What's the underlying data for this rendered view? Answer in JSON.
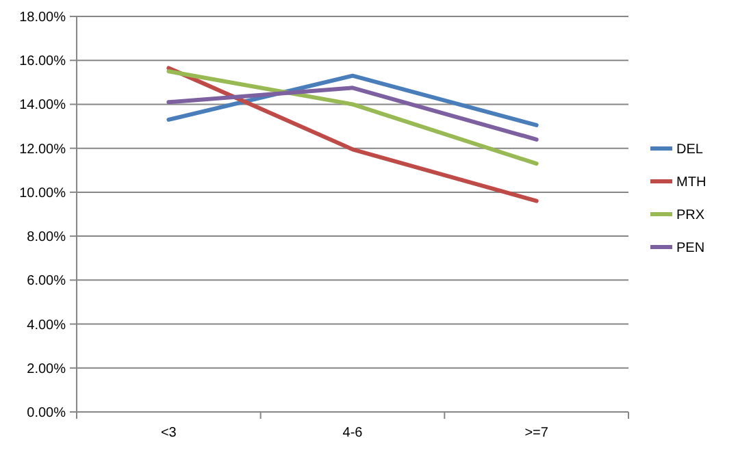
{
  "chart_data": {
    "type": "line",
    "categories": [
      "<3",
      "4-6",
      ">=7"
    ],
    "series": [
      {
        "name": "DEL",
        "color": "#4a7ebb",
        "values": [
          13.3,
          15.3,
          13.05
        ]
      },
      {
        "name": "MTH",
        "color": "#be4b48",
        "values": [
          15.65,
          11.95,
          9.6
        ]
      },
      {
        "name": "PRX",
        "color": "#98b954",
        "values": [
          15.5,
          14.0,
          11.3
        ]
      },
      {
        "name": "PEN",
        "color": "#7d60a0",
        "values": [
          14.1,
          14.75,
          12.4
        ]
      }
    ],
    "ylim": [
      0,
      18
    ],
    "yticks": [
      {
        "value": 0,
        "label": "0.00%"
      },
      {
        "value": 2,
        "label": "2.00%"
      },
      {
        "value": 4,
        "label": "4.00%"
      },
      {
        "value": 6,
        "label": "6.00%"
      },
      {
        "value": 8,
        "label": "8.00%"
      },
      {
        "value": 10,
        "label": "10.00%"
      },
      {
        "value": 12,
        "label": "12.00%"
      },
      {
        "value": 14,
        "label": "14.00%"
      },
      {
        "value": 16,
        "label": "16.00%"
      },
      {
        "value": 18,
        "label": "18.00%"
      }
    ],
    "grid": "y",
    "legend": "right",
    "marker": "none",
    "line_style": "solid"
  }
}
